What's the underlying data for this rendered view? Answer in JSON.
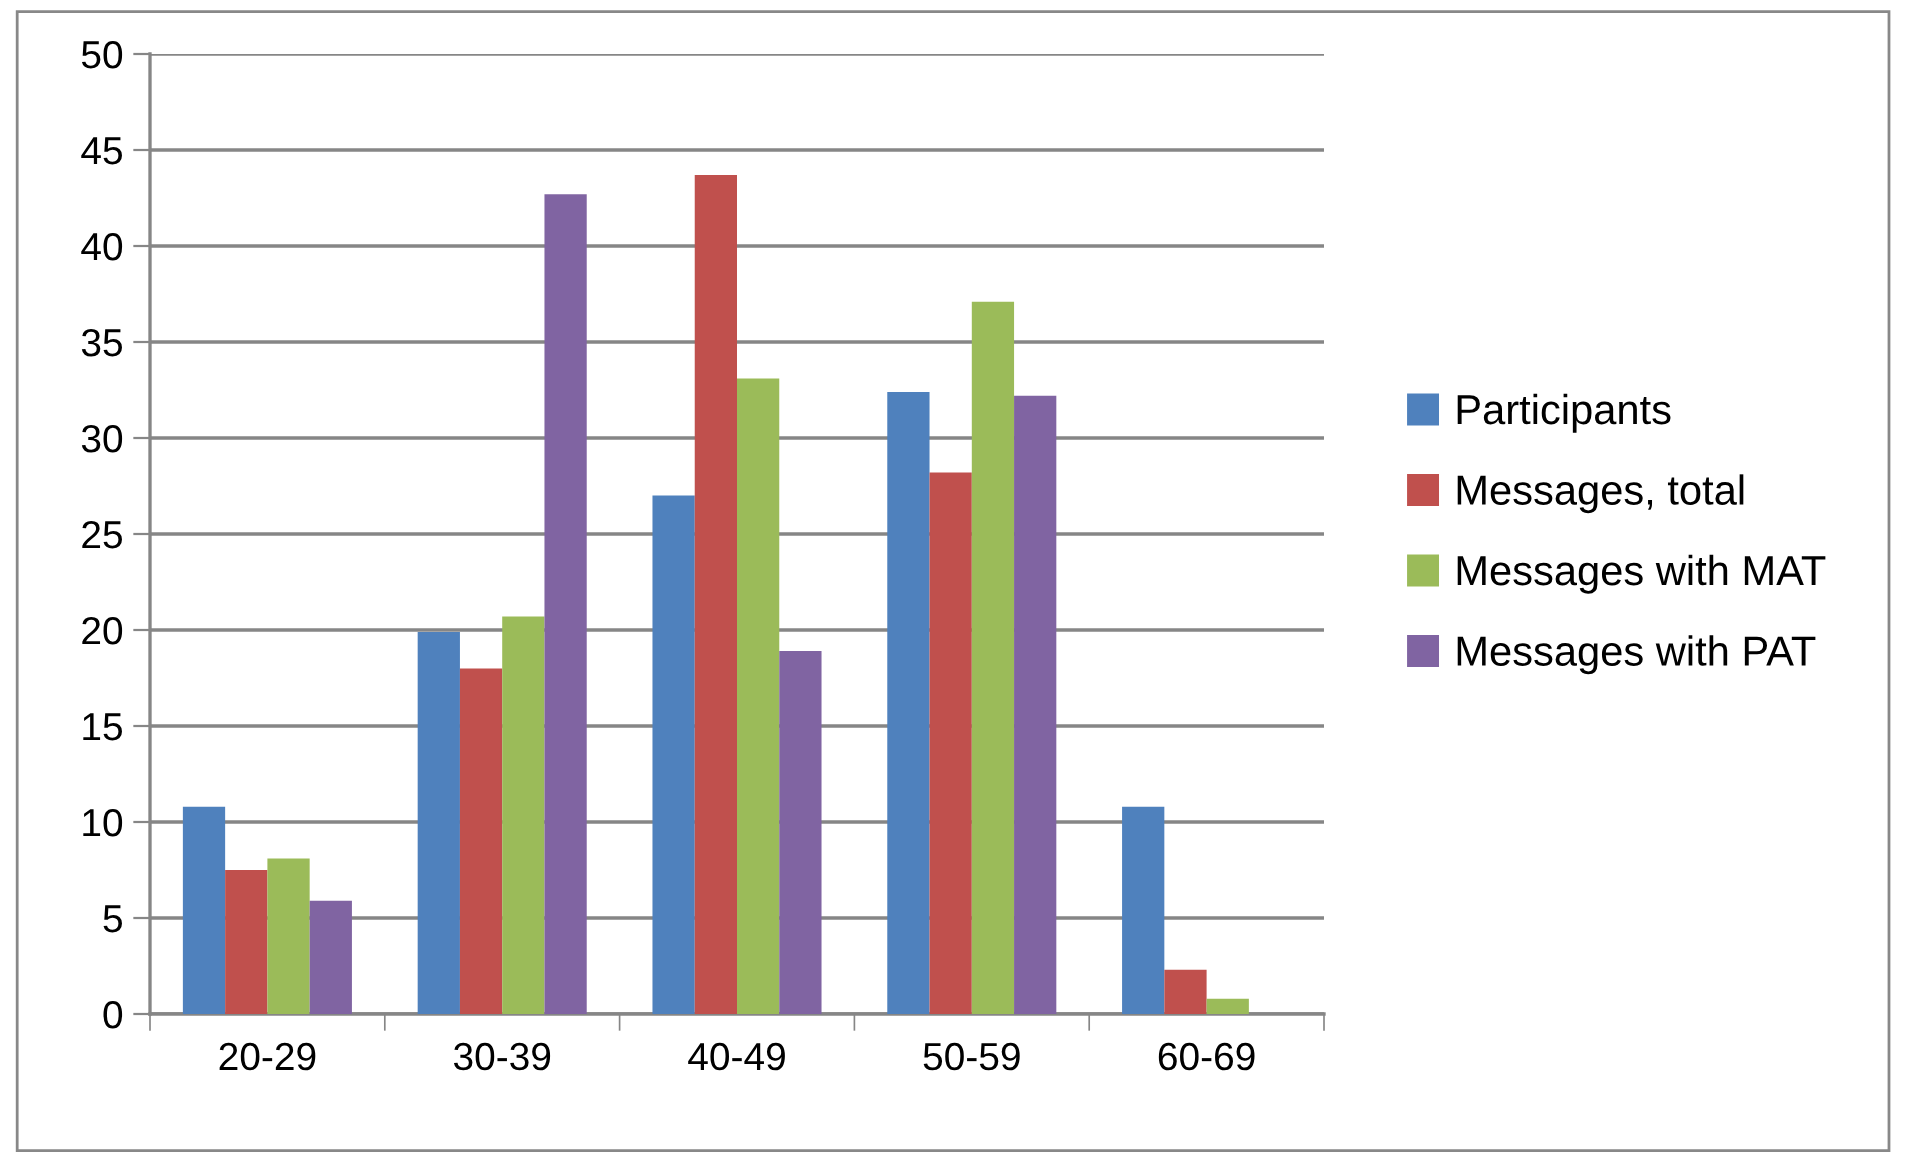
{
  "chart_data": {
    "type": "bar",
    "categories": [
      "20-29",
      "30-39",
      "40-49",
      "50-59",
      "60-69"
    ],
    "series": [
      {
        "name": "Participants",
        "color": "#4f81bd",
        "values": [
          10.8,
          19.9,
          27.0,
          32.4,
          10.8
        ]
      },
      {
        "name": "Messages, total",
        "color": "#c0504d",
        "values": [
          7.5,
          18.0,
          43.7,
          28.2,
          2.3
        ]
      },
      {
        "name": "Messages with MAT",
        "color": "#9bbb59",
        "values": [
          8.1,
          20.7,
          33.1,
          37.1,
          0.8
        ]
      },
      {
        "name": "Messages with PAT",
        "color": "#8064a2",
        "values": [
          5.9,
          42.7,
          18.9,
          32.2,
          0
        ]
      }
    ],
    "ylim": [
      0,
      50
    ],
    "yticks": [
      0,
      5,
      10,
      15,
      20,
      25,
      30,
      35,
      40,
      45,
      50
    ],
    "grid": "y",
    "legend": "right"
  }
}
